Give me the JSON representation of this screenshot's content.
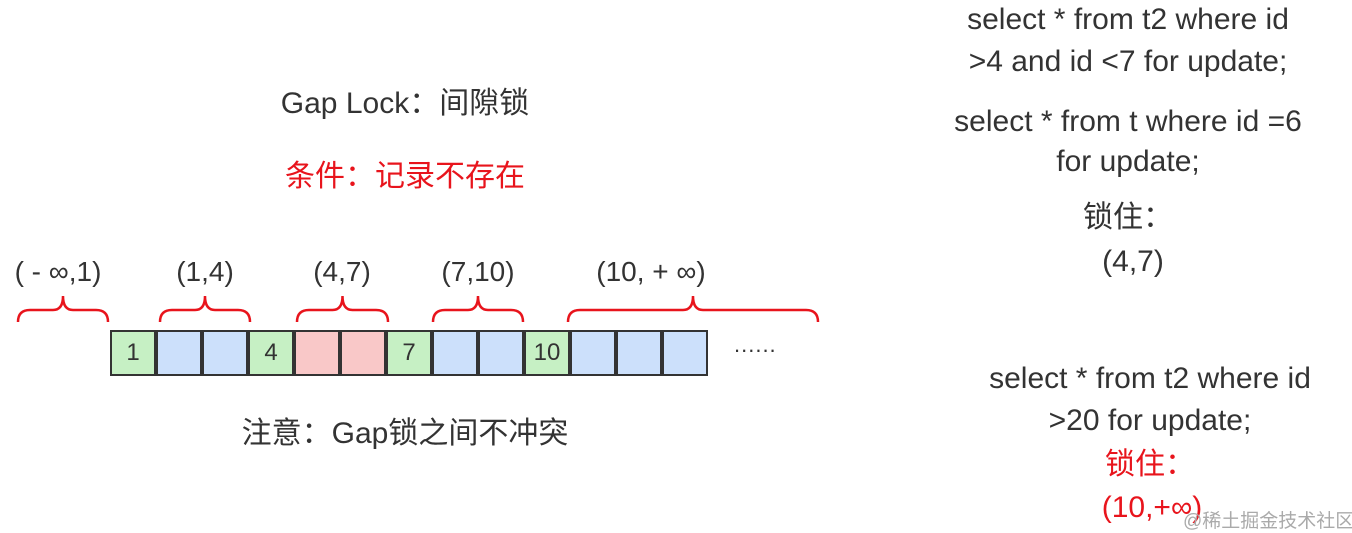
{
  "title": "Gap Lock：间隙锁",
  "condition": "条件：记录不存在",
  "note": "注意：Gap锁之间不冲突",
  "intervals": [
    "( - ∞,1)",
    "(1,4)",
    "(4,7)",
    "(7,10)",
    "(10,  + ∞)"
  ],
  "cells": [
    {
      "text": "1",
      "type": "record"
    },
    {
      "text": "",
      "type": "gap"
    },
    {
      "text": "",
      "type": "gap"
    },
    {
      "text": "4",
      "type": "record"
    },
    {
      "text": "",
      "type": "locked"
    },
    {
      "text": "",
      "type": "locked"
    },
    {
      "text": "7",
      "type": "record"
    },
    {
      "text": "",
      "type": "gap"
    },
    {
      "text": "",
      "type": "gap"
    },
    {
      "text": "10",
      "type": "record"
    },
    {
      "text": "",
      "type": "gap"
    },
    {
      "text": "",
      "type": "gap"
    },
    {
      "text": "",
      "type": "gap"
    }
  ],
  "ellipsis": "......",
  "colors": {
    "record": "#c6f0c4",
    "gap": "#cce0fb",
    "locked": "#f9c8c8",
    "accent": "#e8141c"
  },
  "example1": {
    "line1": "select * from t2 where id",
    "line2": ">4 and id <7 for update;"
  },
  "example2": {
    "line1": "select * from t where id =6",
    "line2": "for update;",
    "locks_label": "锁住：",
    "locks_value": "(4,7)"
  },
  "example3": {
    "line1": "select * from t2 where id",
    "line2": ">20 for update;",
    "locks_label": "锁住：",
    "locks_value": "(10,+∞)"
  },
  "watermark": "@稀土掘金技术社区"
}
